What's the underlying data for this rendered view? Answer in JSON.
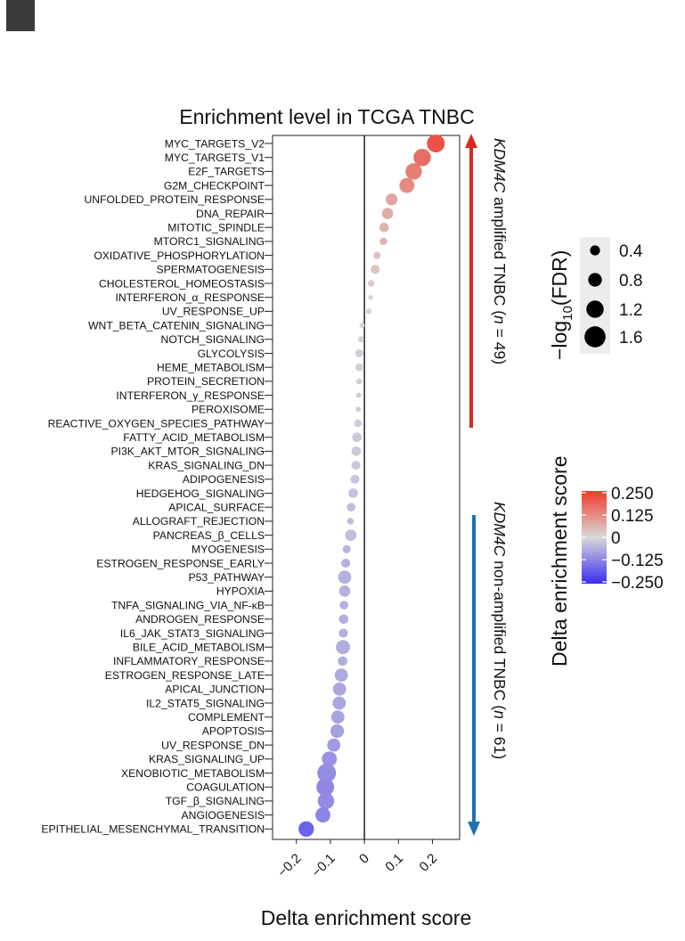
{
  "chart_data": {
    "type": "scatter",
    "title": "Enrichment level in TCGA TNBC",
    "xlabel": "Delta enrichment score",
    "ylabel": "",
    "xlim": [
      -0.27,
      0.28
    ],
    "xticks": [
      -0.2,
      -0.1,
      0,
      0.1,
      0.2
    ],
    "xtick_labels": [
      "−0.2",
      "−0.1",
      "0",
      "0.1",
      "0.2"
    ],
    "grid": false,
    "categories": [
      "MYC_TARGETS_V2",
      "MYC_TARGETS_V1",
      "E2F_TARGETS",
      "G2M_CHECKPOINT",
      "UNFOLDED_PROTEIN_RESPONSE",
      "DNA_REPAIR",
      "MITOTIC_SPINDLE",
      "MTORC1_SIGNALING",
      "OXIDATIVE_PHOSPHORYLATION",
      "SPERMATOGENESIS",
      "CHOLESTEROL_HOMEOSTASIS",
      "INTERFERON_α_RESPONSE",
      "UV_RESPONSE_UP",
      "WNT_BETA_CATENIN_SIGNALING",
      "NOTCH_SIGNALING",
      "GLYCOLYSIS",
      "HEME_METABOLISM",
      "PROTEIN_SECRETION",
      "INTERFERON_γ_RESPONSE",
      "PEROXISOME",
      "REACTIVE_OXYGEN_SPECIES_PATHWAY",
      "FATTY_ACID_METABOLISM",
      "PI3K_AKT_MTOR_SIGNALING",
      "KRAS_SIGNALING_DN",
      "ADIPOGENESIS",
      "HEDGEHOG_SIGNALING",
      "APICAL_SURFACE",
      "ALLOGRAFT_REJECTION",
      "PANCREAS_β_CELLS",
      "MYOGENESIS",
      "ESTROGEN_RESPONSE_EARLY",
      "P53_PATHWAY",
      "HYPOXIA",
      "TNFA_SIGNALING_VIA_NF-κB",
      "ANDROGEN_RESPONSE",
      "IL6_JAK_STAT3_SIGNALING",
      "BILE_ACID_METABOLISM",
      "INFLAMMATORY_RESPONSE",
      "ESTROGEN_RESPONSE_LATE",
      "APICAL_JUNCTION",
      "IL2_STAT5_SIGNALING",
      "COMPLEMENT",
      "APOPTOSIS",
      "UV_RESPONSE_DN",
      "KRAS_SIGNALING_UP",
      "XENOBIOTIC_METABOLISM",
      "COAGULATION",
      "TGF_β_SIGNALING",
      "ANGIOGENESIS",
      "EPITHELIAL_MESENCHYMAL_TRANSITION"
    ],
    "x": [
      0.21,
      0.17,
      0.145,
      0.125,
      0.08,
      0.068,
      0.058,
      0.056,
      0.037,
      0.032,
      0.02,
      0.018,
      0.013,
      -0.007,
      -0.01,
      -0.015,
      -0.015,
      -0.016,
      -0.017,
      -0.018,
      -0.019,
      -0.022,
      -0.024,
      -0.025,
      -0.028,
      -0.033,
      -0.039,
      -0.041,
      -0.04,
      -0.052,
      -0.055,
      -0.058,
      -0.058,
      -0.06,
      -0.061,
      -0.062,
      -0.063,
      -0.064,
      -0.068,
      -0.073,
      -0.074,
      -0.078,
      -0.08,
      -0.09,
      -0.103,
      -0.111,
      -0.115,
      -0.113,
      -0.122,
      -0.171
    ],
    "neg_log10_fdr": [
      1.5,
      1.45,
      1.35,
      1.2,
      0.85,
      0.8,
      0.6,
      0.4,
      0.35,
      0.55,
      0.3,
      0.1,
      0.2,
      0.15,
      0.25,
      0.45,
      0.4,
      0.2,
      0.15,
      0.15,
      0.4,
      0.6,
      0.6,
      0.55,
      0.55,
      0.6,
      0.5,
      0.3,
      0.8,
      0.45,
      0.55,
      1.0,
      0.8,
      0.5,
      0.6,
      0.55,
      1.1,
      0.6,
      1.0,
      1.0,
      1.0,
      1.0,
      1.05,
      1.0,
      1.2,
      1.6,
      1.5,
      1.35,
      1.2,
      1.25
    ],
    "color_scale": {
      "title": "Delta enrichment score",
      "labels": [
        "0.250",
        "0.125",
        "0",
        "−0.125",
        "−0.250"
      ],
      "low": "#3a2cf0",
      "mid": "#d9d9d9",
      "high": "#f03a2a"
    },
    "size_legend": {
      "title": "−log",
      "title_sub": "10",
      "title_suffix": "(FDR)",
      "values": [
        0.4,
        0.8,
        1.2,
        1.6
      ],
      "labels": [
        "0.4",
        "0.8",
        "1.2",
        "1.6"
      ]
    },
    "annotations": {
      "up_gene": "KDM4C",
      "up_text": " amplified TNBC (",
      "up_n": "n",
      "up_n_rest": " = 49)",
      "up_color": "#d9291c",
      "down_gene": "KDM4C",
      "down_text": " non-amplified TNBC (",
      "down_n": "n",
      "down_n_rest": " = 61)",
      "down_color": "#1a73b5"
    }
  }
}
